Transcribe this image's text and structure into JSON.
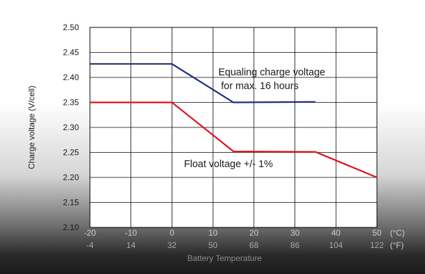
{
  "chart_data": {
    "type": "line",
    "title": "",
    "ylabel": "Charge voltage (V/cell)",
    "xlabel": "Battery Temperature",
    "x_unit_c": "(°C)",
    "x_unit_f": "(°F)",
    "xlim": [
      -20,
      50
    ],
    "ylim": [
      2.1,
      2.5
    ],
    "x_ticks_c": [
      -20,
      -10,
      0,
      10,
      20,
      30,
      40,
      50
    ],
    "x_tick_labels_c": [
      "-20",
      "-10",
      "0",
      "10",
      "20",
      "30",
      "40",
      "50"
    ],
    "x_tick_labels_f": [
      "-4",
      "14",
      "32",
      "50",
      "68",
      "86",
      "104",
      "122"
    ],
    "y_ticks": [
      2.1,
      2.15,
      2.2,
      2.25,
      2.3,
      2.35,
      2.4,
      2.45,
      2.5
    ],
    "y_tick_labels": [
      "2.10",
      "2.15",
      "2.20",
      "2.25",
      "2.30",
      "2.35",
      "2.40",
      "2.45",
      "2.50"
    ],
    "grid": true,
    "series": [
      {
        "name": "Equaling charge voltage",
        "color": "#1f2a7a",
        "x": [
          -20,
          0,
          15,
          35
        ],
        "y": [
          2.427,
          2.427,
          2.35,
          2.351
        ]
      },
      {
        "name": "Float voltage",
        "color": "#e0101c",
        "x": [
          -20,
          0,
          15,
          35,
          50
        ],
        "y": [
          2.35,
          2.35,
          2.252,
          2.251,
          2.2
        ]
      }
    ],
    "annotations": [
      "Equaling charge voltage",
      "for max. 16 hours",
      "Float voltage +/- 1%"
    ]
  }
}
